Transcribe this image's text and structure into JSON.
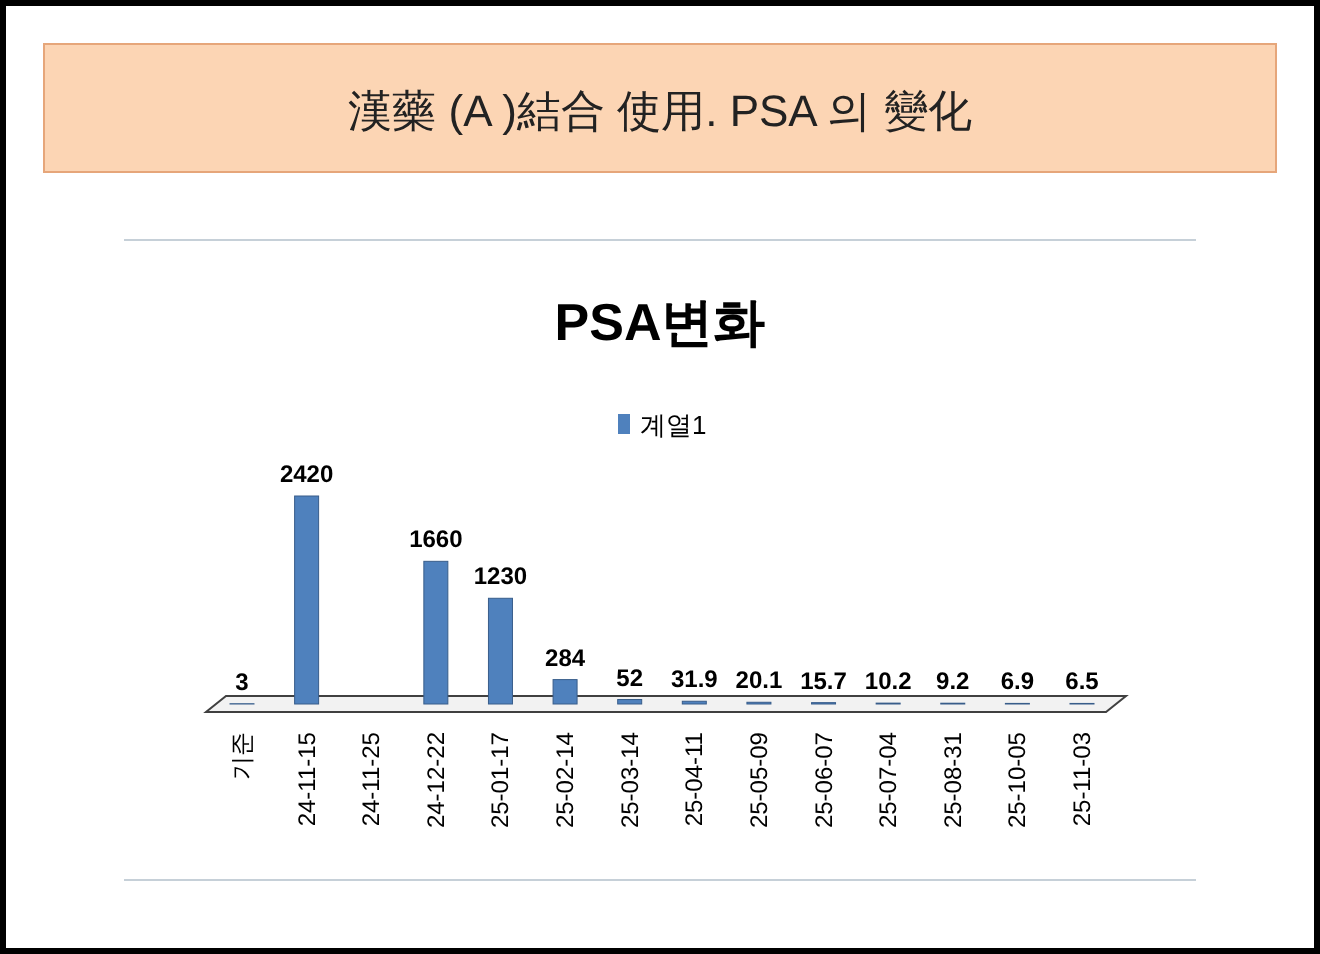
{
  "chart_data": {
    "type": "bar",
    "title": "PSA변화",
    "annotations": [
      "漢藥 (A )結合 使用. PSA 의 變化"
    ],
    "categories": [
      "기준",
      "24-11-15",
      "24-11-25",
      "24-12-22",
      "25-01-17",
      "25-02-14",
      "25-03-14",
      "25-04-11",
      "25-05-09",
      "25-06-07",
      "25-07-04",
      "25-08-31",
      "25-10-05",
      "25-11-03"
    ],
    "series": [
      {
        "name": "계열1",
        "color": "#4f81bd",
        "values": [
          3,
          2420,
          null,
          1660,
          1230,
          284,
          52,
          31.9,
          20.1,
          15.7,
          10.2,
          9.2,
          6.9,
          6.5
        ]
      }
    ],
    "data_labels": true,
    "legend": "top"
  }
}
